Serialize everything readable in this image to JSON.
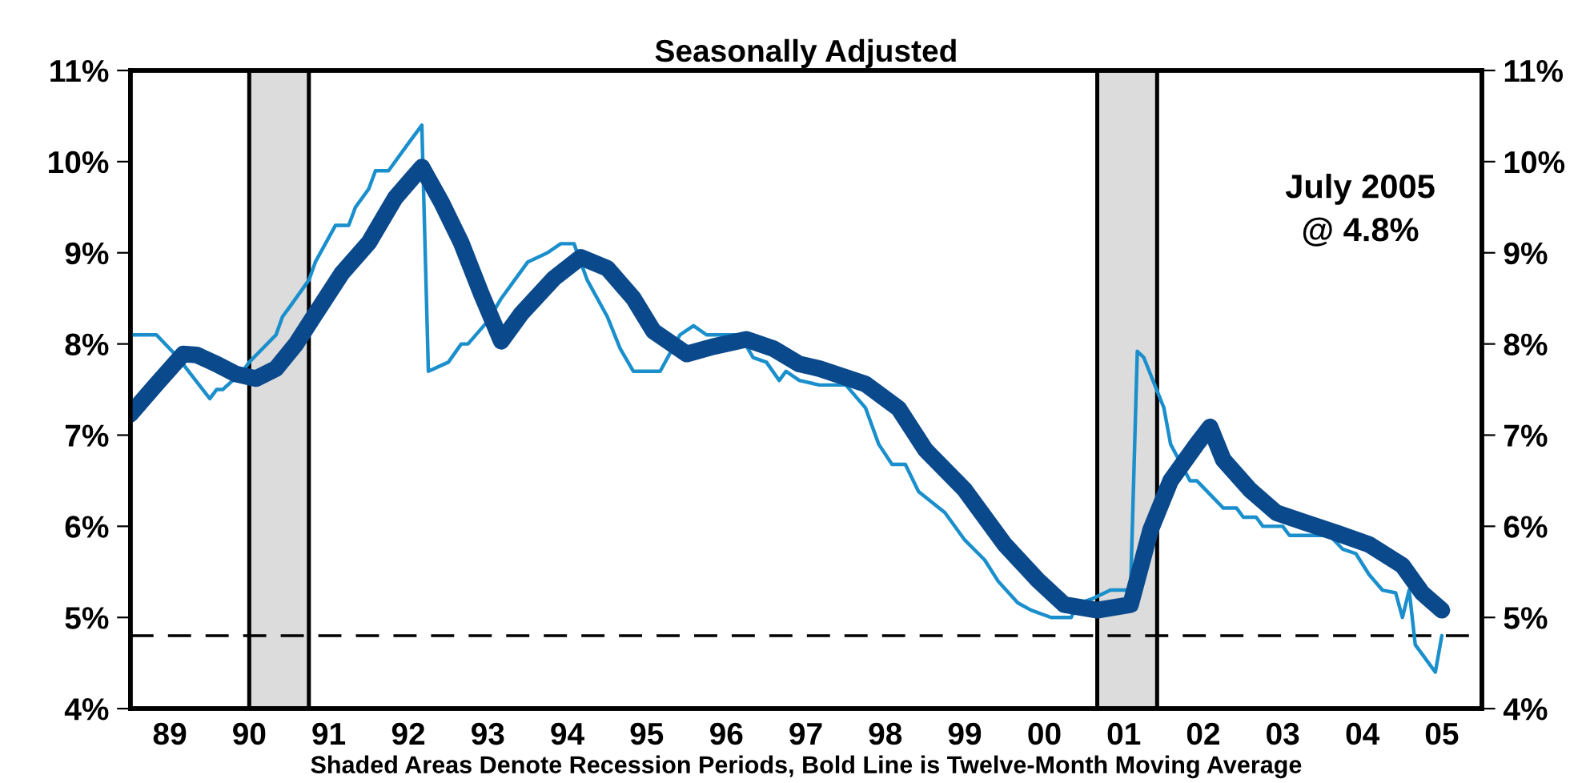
{
  "chart_data": {
    "type": "line",
    "title": "Seasonally Adjusted",
    "xlabel": "Shaded Areas Denote Recession Periods, Bold Line is Twelve-Month Moving Average",
    "annotations": [
      "July 2005\n@ 4.8%"
    ],
    "xlim": [
      "1989-01",
      "2006-01"
    ],
    "xticks": [
      {
        "value": "1989-07",
        "label": "89"
      },
      {
        "value": "1990-07",
        "label": "90"
      },
      {
        "value": "1991-07",
        "label": "91"
      },
      {
        "value": "1992-07",
        "label": "92"
      },
      {
        "value": "1993-07",
        "label": "93"
      },
      {
        "value": "1994-07",
        "label": "94"
      },
      {
        "value": "1995-07",
        "label": "95"
      },
      {
        "value": "1996-07",
        "label": "96"
      },
      {
        "value": "1997-07",
        "label": "97"
      },
      {
        "value": "1998-07",
        "label": "98"
      },
      {
        "value": "1999-07",
        "label": "99"
      },
      {
        "value": "2000-07",
        "label": "00"
      },
      {
        "value": "2001-07",
        "label": "01"
      },
      {
        "value": "2002-07",
        "label": "02"
      },
      {
        "value": "2003-07",
        "label": "03"
      },
      {
        "value": "2004-07",
        "label": "04"
      },
      {
        "value": "2005-07",
        "label": "05"
      }
    ],
    "ylim": [
      4,
      11
    ],
    "yticks": [
      {
        "value": 4,
        "label": "4%"
      },
      {
        "value": 5,
        "label": "5%"
      },
      {
        "value": 6,
        "label": "6%"
      },
      {
        "value": 7,
        "label": "7%"
      },
      {
        "value": 8,
        "label": "8%"
      },
      {
        "value": 9,
        "label": "9%"
      },
      {
        "value": 10,
        "label": "10%"
      },
      {
        "value": 11,
        "label": "11%"
      }
    ],
    "y2lim": [
      4,
      11
    ],
    "y2ticks": [
      {
        "value": 4,
        "label": "4%"
      },
      {
        "value": 5,
        "label": "5%"
      },
      {
        "value": 6,
        "label": "6%"
      },
      {
        "value": 7,
        "label": "7%"
      },
      {
        "value": 8,
        "label": "8%"
      },
      {
        "value": 9,
        "label": "9%"
      },
      {
        "value": 10,
        "label": "10%"
      },
      {
        "value": 11,
        "label": "11%"
      }
    ],
    "grid": false,
    "legend": false,
    "marker": "none",
    "line_style": "solid",
    "ref_lines": [
      {
        "axis": "y",
        "value": 4.8,
        "color": "#000000",
        "line_style": "dashed"
      }
    ],
    "bands": [
      {
        "axis": "x",
        "from": "1990-07",
        "to": "1991-04",
        "color": "#dcdcdc"
      },
      {
        "axis": "x",
        "from": "2001-03",
        "to": "2001-12",
        "color": "#dcdcdc"
      }
    ],
    "series": [
      {
        "color": "#1a8fcc",
        "x": [
          "1989-01",
          "1989-05",
          "1989-08",
          "1990-01",
          "1990-02",
          "1990-03",
          "1990-06",
          "1990-07",
          "1990-11",
          "1990-12",
          "1991-01",
          "1991-04",
          "1991-05",
          "1991-08",
          "1991-10",
          "1991-11",
          "1992-01",
          "1992-02",
          "1992-04",
          "1992-07",
          "1992-09",
          "1992-10",
          "1993-01",
          "1993-03",
          "1993-04",
          "1993-07",
          "1993-09",
          "1993-11",
          "1994-01",
          "1994-04",
          "1994-06",
          "1994-08",
          "1994-10",
          "1995-01",
          "1995-03",
          "1995-05",
          "1995-09",
          "1995-12",
          "1996-02",
          "1996-04",
          "1996-09",
          "1996-11",
          "1997-01",
          "1997-03",
          "1997-04",
          "1997-06",
          "1997-09",
          "1998-01",
          "1998-04",
          "1998-06",
          "1998-08",
          "1998-10",
          "1998-12",
          "1999-04",
          "1999-07",
          "1999-10",
          "1999-12",
          "2000-03",
          "2000-05",
          "2000-08",
          "2000-11",
          "2000-12",
          "2001-02",
          "2001-05",
          "2001-08",
          "2001-09",
          "2001-10",
          "2002-01",
          "2002-02",
          "2002-05",
          "2002-06",
          "2002-10",
          "2002-12",
          "2003-01",
          "2003-03",
          "2003-04",
          "2003-07",
          "2003-08",
          "2004-02",
          "2004-04",
          "2004-06",
          "2004-08",
          "2004-10",
          "2004-12",
          "2005-01",
          "2005-02",
          "2005-03",
          "2005-06",
          "2005-07"
        ],
        "values": [
          8.1,
          8.1,
          7.87,
          7.4,
          7.5,
          7.5,
          7.7,
          7.8,
          8.1,
          8.3,
          8.4,
          8.7,
          8.9,
          9.3,
          9.3,
          9.5,
          9.7,
          9.9,
          9.9,
          10.2,
          10.4,
          7.7,
          7.8,
          8.0,
          8.0,
          8.25,
          8.5,
          8.7,
          8.9,
          9.0,
          9.1,
          9.1,
          8.7,
          8.3,
          7.95,
          7.7,
          7.7,
          8.1,
          8.2,
          8.1,
          8.1,
          7.85,
          7.8,
          7.6,
          7.7,
          7.6,
          7.55,
          7.55,
          7.3,
          6.9,
          6.68,
          6.68,
          6.38,
          6.15,
          5.85,
          5.63,
          5.4,
          5.16,
          5.08,
          5.0,
          5.0,
          5.15,
          5.2,
          5.3,
          5.3,
          7.92,
          7.85,
          7.3,
          6.9,
          6.5,
          6.5,
          6.2,
          6.2,
          6.1,
          6.1,
          6.0,
          6.0,
          5.9,
          5.9,
          5.75,
          5.7,
          5.47,
          5.3,
          5.27,
          5.0,
          5.3,
          4.7,
          4.4,
          4.8
        ]
      },
      {
        "color": "#0a4a8c",
        "x": [
          "1989-01",
          "1989-05",
          "1989-09",
          "1989-11",
          "1990-02",
          "1990-05",
          "1990-08",
          "1990-11",
          "1991-02",
          "1991-05",
          "1991-09",
          "1992-01",
          "1992-05",
          "1992-09",
          "1992-12",
          "1993-03",
          "1993-06",
          "1993-09",
          "1993-12",
          "1994-05",
          "1994-09",
          "1995-01",
          "1995-05",
          "1995-08",
          "1996-01",
          "1996-05",
          "1996-10",
          "1997-02",
          "1997-06",
          "1997-09",
          "1998-04",
          "1998-09",
          "1999-01",
          "1999-07",
          "2000-01",
          "2000-06",
          "2000-10",
          "2001-03",
          "2001-08",
          "2001-11",
          "2002-02",
          "2002-06",
          "2002-08",
          "2002-10",
          "2003-02",
          "2003-06",
          "2003-10",
          "2004-03",
          "2004-08",
          "2005-01",
          "2005-04",
          "2005-07"
        ],
        "values": [
          7.23,
          7.56,
          7.89,
          7.88,
          7.78,
          7.67,
          7.62,
          7.73,
          8.0,
          8.33,
          8.78,
          9.11,
          9.6,
          9.94,
          9.55,
          9.11,
          8.55,
          8.03,
          8.33,
          8.72,
          8.95,
          8.83,
          8.5,
          8.14,
          7.89,
          7.97,
          8.05,
          7.95,
          7.78,
          7.73,
          7.56,
          7.29,
          6.84,
          6.4,
          5.8,
          5.41,
          5.14,
          5.08,
          5.14,
          5.96,
          6.5,
          6.9,
          7.09,
          6.73,
          6.4,
          6.15,
          6.05,
          5.93,
          5.8,
          5.57,
          5.27,
          5.08
        ]
      }
    ]
  }
}
